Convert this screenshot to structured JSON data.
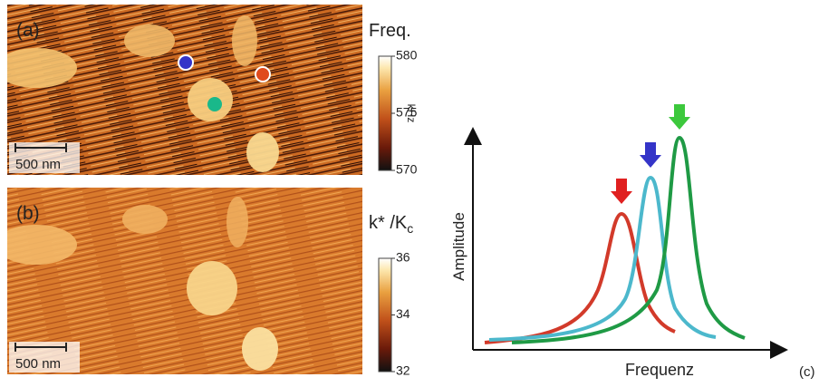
{
  "panels": [
    {
      "label": "(a)",
      "scale_bar": "500 nm",
      "colorbar": {
        "title": "Freq.",
        "unit": "kHz",
        "lim": [
          570,
          580
        ],
        "ticks": [
          570,
          575,
          580
        ]
      }
    },
    {
      "label": "(b)",
      "scale_bar": "500 nm",
      "colorbar": {
        "title": "k* /K",
        "title_sub": "c",
        "lim": [
          32,
          36
        ],
        "ticks": [
          32,
          34,
          36
        ]
      }
    }
  ],
  "plot": {
    "label": "(c)",
    "x_label": "Frequenz",
    "y_label": "Amplitude"
  }
}
